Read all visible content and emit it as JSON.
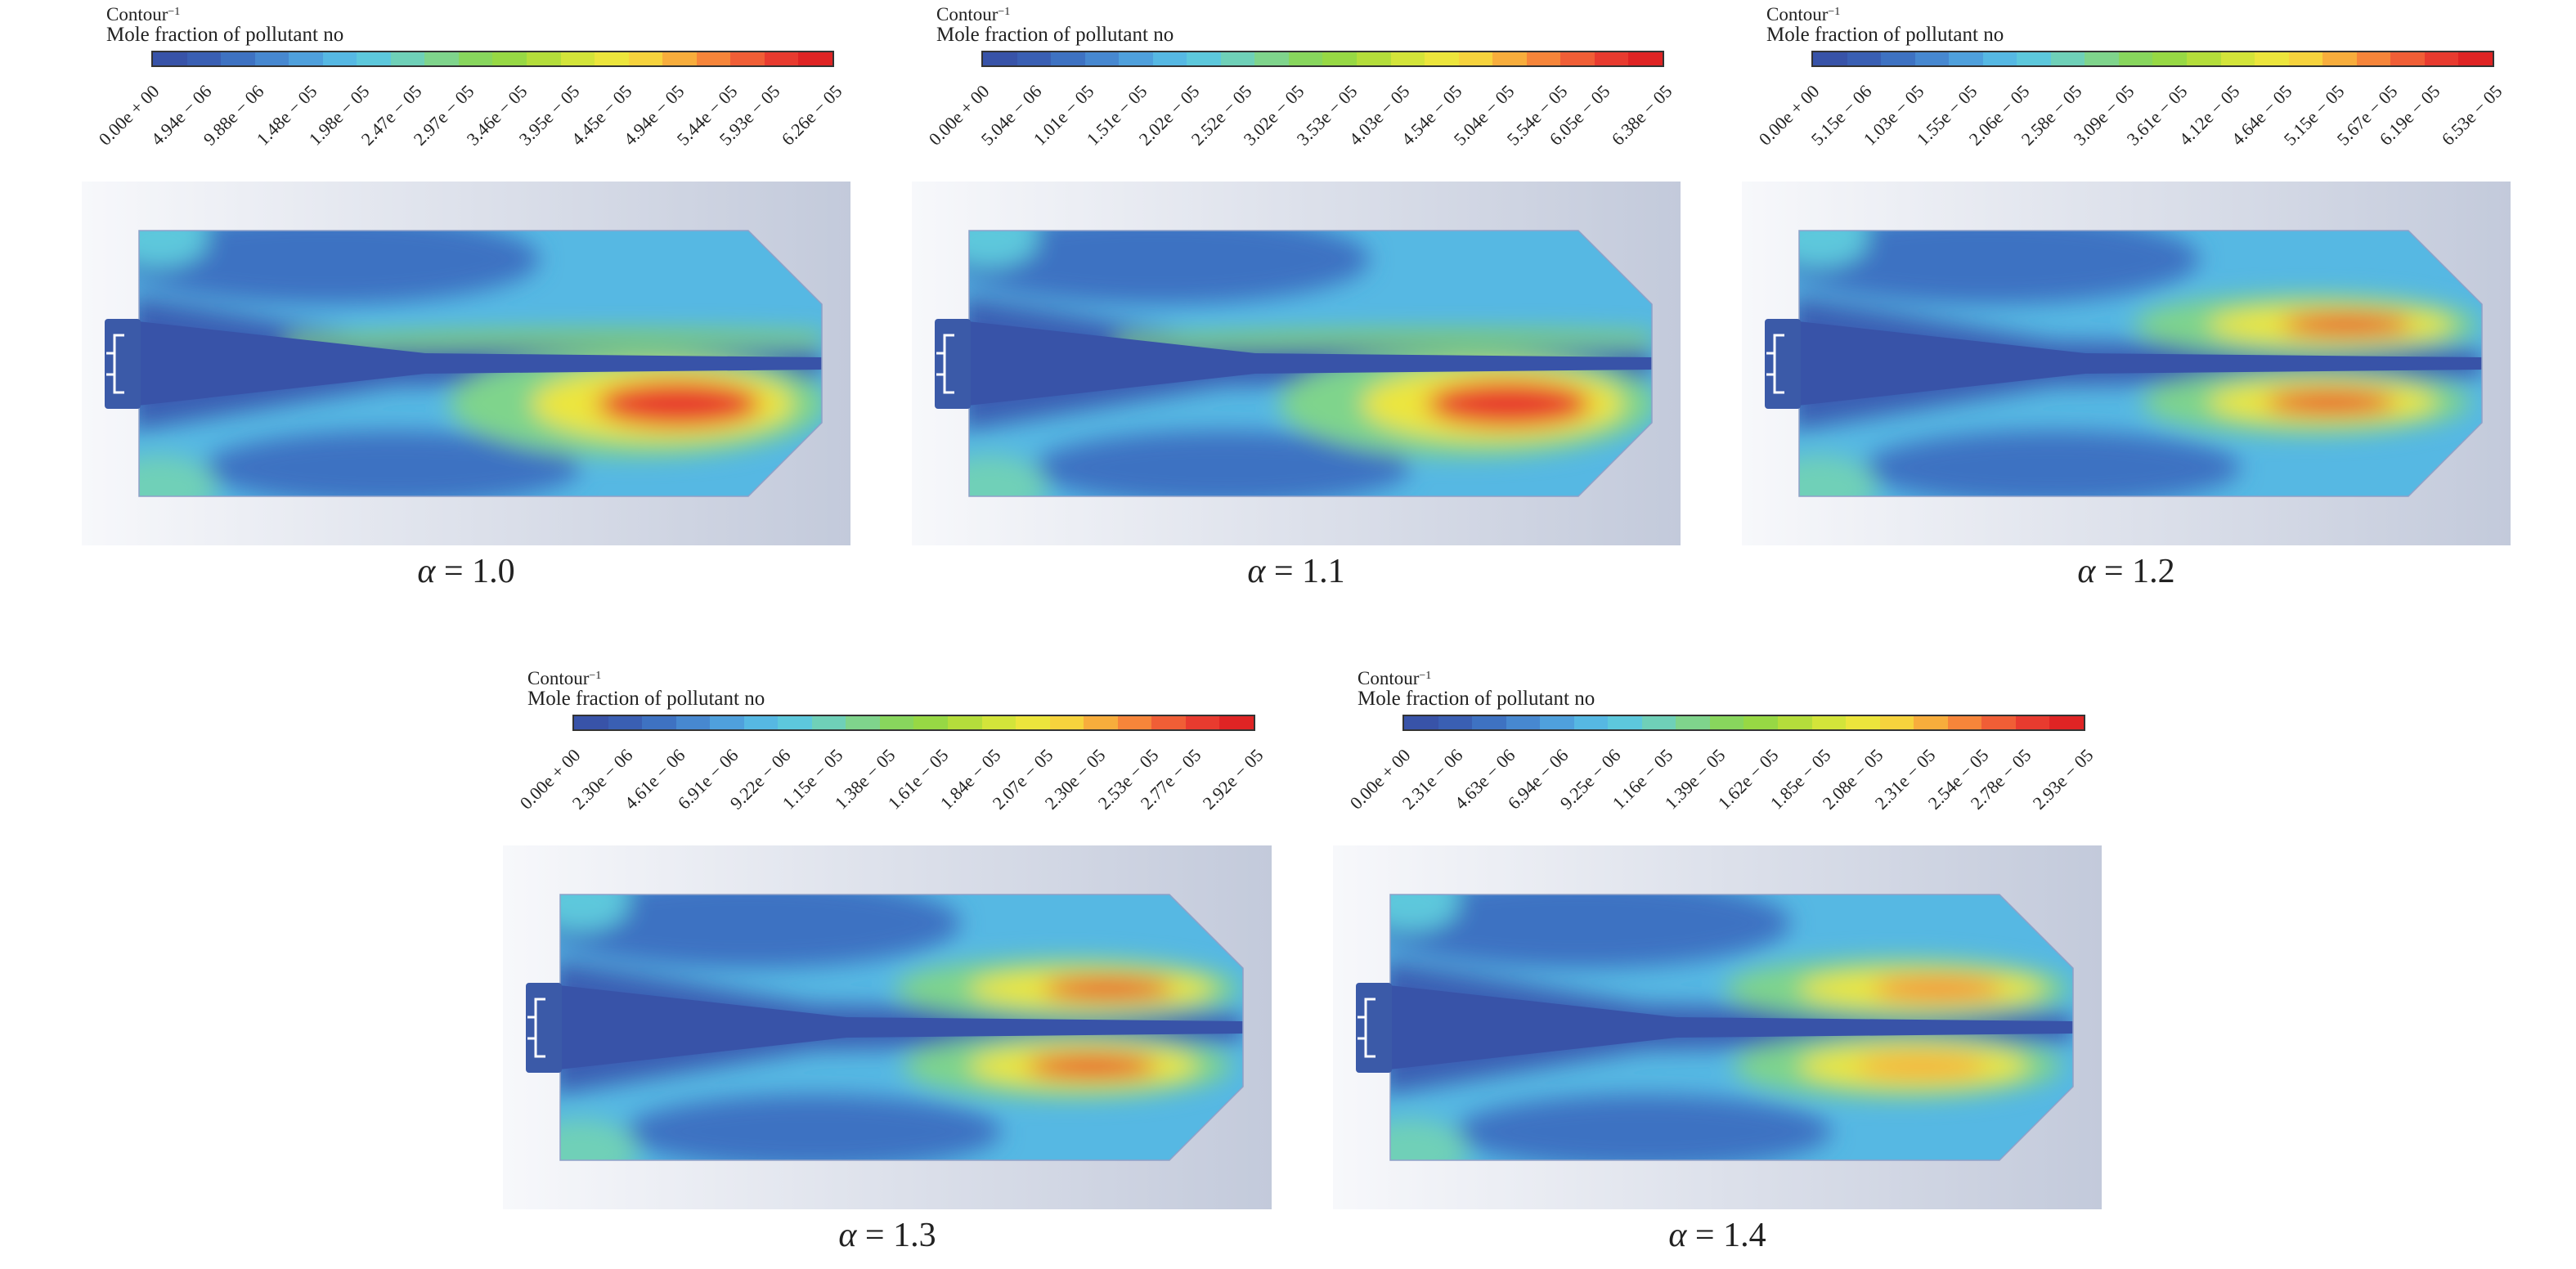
{
  "legend_title": "Contour",
  "legend_title_sup": "−1",
  "legend_variable": "Mole fraction of pollutant no",
  "colormap": [
    "#3853a8",
    "#3a5fb3",
    "#3e72c2",
    "#4788d0",
    "#4fa0dc",
    "#56b8e3",
    "#5dc8dc",
    "#6fd0b8",
    "#7fd48c",
    "#88d65d",
    "#97d844",
    "#b4dd3b",
    "#d3e43a",
    "#ece53c",
    "#f6d33d",
    "#f7ad3c",
    "#f6853a",
    "#f05e36",
    "#e83b2f",
    "#df2424"
  ],
  "cases": [
    {
      "caption_var": "α",
      "caption_rest": " = 1.0",
      "ticks": [
        "0.00e + 00",
        "4.94e − 06",
        "9.88e − 06",
        "1.48e − 05",
        "1.98e − 05",
        "2.47e − 05",
        "2.97e − 05",
        "3.46e − 05",
        "3.95e − 05",
        "4.45e − 05",
        "4.94e − 05",
        "5.44e − 05",
        "5.93e − 05",
        "6.26e − 05"
      ],
      "max_value": 6.26e-05,
      "hotspot": "lower"
    },
    {
      "caption_var": "α",
      "caption_rest": " = 1.1",
      "ticks": [
        "0.00e + 00",
        "5.04e − 06",
        "1.01e − 05",
        "1.51e − 05",
        "2.02e − 05",
        "2.52e − 05",
        "3.02e − 05",
        "3.53e − 05",
        "4.03e − 05",
        "4.54e − 05",
        "5.04e − 05",
        "5.54e − 05",
        "6.05e − 05",
        "6.38e − 05"
      ],
      "max_value": 6.38e-05,
      "hotspot": "lower"
    },
    {
      "caption_var": "α",
      "caption_rest": " = 1.2",
      "ticks": [
        "0.00e + 00",
        "5.15e − 06",
        "1.03e − 05",
        "1.55e − 05",
        "2.06e − 05",
        "2.58e − 05",
        "3.09e − 05",
        "3.61e − 05",
        "4.12e − 05",
        "4.64e − 05",
        "5.15e − 05",
        "5.67e − 05",
        "6.19e − 05",
        "6.53e − 05"
      ],
      "max_value": 6.53e-05,
      "hotspot": "both"
    },
    {
      "caption_var": "α",
      "caption_rest": " = 1.3",
      "ticks": [
        "0.00e + 00",
        "2.30e − 06",
        "4.61e − 06",
        "6.91e − 06",
        "9.22e − 06",
        "1.15e − 05",
        "1.38e − 05",
        "1.61e − 05",
        "1.84e − 05",
        "2.07e − 05",
        "2.30e − 05",
        "2.53e − 05",
        "2.77e − 05",
        "2.92e − 05"
      ],
      "max_value": 2.92e-05,
      "hotspot": "both"
    },
    {
      "caption_var": "α",
      "caption_rest": " = 1.4",
      "ticks": [
        "0.00e + 00",
        "2.31e − 06",
        "4.63e − 06",
        "6.94e − 06",
        "9.25e − 06",
        "1.16e − 05",
        "1.39e − 05",
        "1.62e − 05",
        "1.85e − 05",
        "2.08e − 05",
        "2.31e − 05",
        "2.54e − 05",
        "2.78e − 05",
        "2.93e − 05"
      ],
      "max_value": 2.93e-05,
      "hotspot": "both-weak"
    }
  ]
}
